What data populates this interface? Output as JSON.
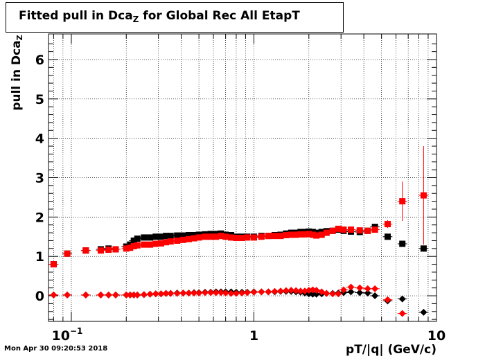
{
  "title_main": "Fitted pull in Dca",
  "title_sub": "Z",
  "title_rest": " for Global Rec All EtapT",
  "timestamp": "Mon Apr 30 09:20:53 2018",
  "chart_data": {
    "type": "scatter",
    "title": "Fitted pull in Dca_Z for Global Rec All EtapT",
    "xlabel": "pT/|q| (GeV/c)",
    "ylabel_main": "pull in Dca",
    "ylabel_sub": "Z",
    "xscale": "log",
    "xlim": [
      0.075,
      10
    ],
    "ylim": [
      -0.65,
      6.65
    ],
    "grid": true,
    "xtick_labels": [
      {
        "value": 0.1,
        "label": "10",
        "exp": "−1"
      },
      {
        "value": 1,
        "label": "1",
        "exp": ""
      },
      {
        "value": 10,
        "label": "10",
        "exp": ""
      }
    ],
    "yticks": [
      0,
      1,
      2,
      3,
      4,
      5,
      6
    ],
    "series": [
      {
        "marker": "square",
        "color": "#000000",
        "points": [
          {
            "x": 0.08,
            "y": 0.8
          },
          {
            "x": 0.095,
            "y": 1.07
          },
          {
            "x": 0.12,
            "y": 1.15
          },
          {
            "x": 0.145,
            "y": 1.18
          },
          {
            "x": 0.16,
            "y": 1.2
          },
          {
            "x": 0.175,
            "y": 1.18
          },
          {
            "x": 0.2,
            "y": 1.25
          },
          {
            "x": 0.21,
            "y": 1.3
          },
          {
            "x": 0.22,
            "y": 1.4
          },
          {
            "x": 0.23,
            "y": 1.45
          },
          {
            "x": 0.25,
            "y": 1.48
          },
          {
            "x": 0.27,
            "y": 1.48
          },
          {
            "x": 0.29,
            "y": 1.5
          },
          {
            "x": 0.31,
            "y": 1.5
          },
          {
            "x": 0.33,
            "y": 1.52
          },
          {
            "x": 0.35,
            "y": 1.52
          },
          {
            "x": 0.38,
            "y": 1.53
          },
          {
            "x": 0.41,
            "y": 1.53
          },
          {
            "x": 0.44,
            "y": 1.54
          },
          {
            "x": 0.47,
            "y": 1.54
          },
          {
            "x": 0.5,
            "y": 1.55
          },
          {
            "x": 0.54,
            "y": 1.56
          },
          {
            "x": 0.58,
            "y": 1.57
          },
          {
            "x": 0.62,
            "y": 1.57
          },
          {
            "x": 0.66,
            "y": 1.58
          },
          {
            "x": 0.7,
            "y": 1.55
          },
          {
            "x": 0.75,
            "y": 1.54
          },
          {
            "x": 0.8,
            "y": 1.5
          },
          {
            "x": 0.86,
            "y": 1.5
          },
          {
            "x": 0.92,
            "y": 1.5
          },
          {
            "x": 1.0,
            "y": 1.5
          },
          {
            "x": 1.1,
            "y": 1.52
          },
          {
            "x": 1.2,
            "y": 1.52
          },
          {
            "x": 1.3,
            "y": 1.54
          },
          {
            "x": 1.4,
            "y": 1.55
          },
          {
            "x": 1.5,
            "y": 1.58
          },
          {
            "x": 1.6,
            "y": 1.6
          },
          {
            "x": 1.7,
            "y": 1.6
          },
          {
            "x": 1.8,
            "y": 1.62
          },
          {
            "x": 1.9,
            "y": 1.62
          },
          {
            "x": 2.0,
            "y": 1.63
          },
          {
            "x": 2.1,
            "y": 1.62
          },
          {
            "x": 2.2,
            "y": 1.6
          },
          {
            "x": 2.35,
            "y": 1.62
          },
          {
            "x": 2.5,
            "y": 1.64
          },
          {
            "x": 2.7,
            "y": 1.65
          },
          {
            "x": 2.9,
            "y": 1.68
          },
          {
            "x": 3.1,
            "y": 1.65
          },
          {
            "x": 3.4,
            "y": 1.63
          },
          {
            "x": 3.8,
            "y": 1.62
          },
          {
            "x": 4.2,
            "y": 1.65
          },
          {
            "x": 4.6,
            "y": 1.75
          },
          {
            "x": 5.4,
            "y": 1.5
          },
          {
            "x": 6.5,
            "y": 1.32
          },
          {
            "x": 8.5,
            "y": 1.2
          }
        ]
      },
      {
        "marker": "square",
        "color": "#ff0000",
        "points": [
          {
            "x": 0.08,
            "y": 0.8
          },
          {
            "x": 0.095,
            "y": 1.07
          },
          {
            "x": 0.12,
            "y": 1.15
          },
          {
            "x": 0.145,
            "y": 1.15
          },
          {
            "x": 0.16,
            "y": 1.17
          },
          {
            "x": 0.175,
            "y": 1.18
          },
          {
            "x": 0.2,
            "y": 1.2
          },
          {
            "x": 0.21,
            "y": 1.22
          },
          {
            "x": 0.22,
            "y": 1.26
          },
          {
            "x": 0.23,
            "y": 1.28
          },
          {
            "x": 0.25,
            "y": 1.3
          },
          {
            "x": 0.27,
            "y": 1.3
          },
          {
            "x": 0.29,
            "y": 1.32
          },
          {
            "x": 0.31,
            "y": 1.33
          },
          {
            "x": 0.33,
            "y": 1.36
          },
          {
            "x": 0.35,
            "y": 1.38
          },
          {
            "x": 0.38,
            "y": 1.4
          },
          {
            "x": 0.41,
            "y": 1.42
          },
          {
            "x": 0.44,
            "y": 1.44
          },
          {
            "x": 0.47,
            "y": 1.46
          },
          {
            "x": 0.5,
            "y": 1.48
          },
          {
            "x": 0.54,
            "y": 1.5
          },
          {
            "x": 0.58,
            "y": 1.5
          },
          {
            "x": 0.62,
            "y": 1.5
          },
          {
            "x": 0.66,
            "y": 1.52
          },
          {
            "x": 0.7,
            "y": 1.5
          },
          {
            "x": 0.75,
            "y": 1.48
          },
          {
            "x": 0.8,
            "y": 1.47
          },
          {
            "x": 0.86,
            "y": 1.47
          },
          {
            "x": 0.92,
            "y": 1.48
          },
          {
            "x": 1.0,
            "y": 1.48
          },
          {
            "x": 1.1,
            "y": 1.5
          },
          {
            "x": 1.2,
            "y": 1.52
          },
          {
            "x": 1.3,
            "y": 1.52
          },
          {
            "x": 1.4,
            "y": 1.52
          },
          {
            "x": 1.5,
            "y": 1.54
          },
          {
            "x": 1.6,
            "y": 1.55
          },
          {
            "x": 1.7,
            "y": 1.55
          },
          {
            "x": 1.8,
            "y": 1.56
          },
          {
            "x": 1.9,
            "y": 1.56
          },
          {
            "x": 2.0,
            "y": 1.57
          },
          {
            "x": 2.1,
            "y": 1.55
          },
          {
            "x": 2.2,
            "y": 1.53
          },
          {
            "x": 2.35,
            "y": 1.55
          },
          {
            "x": 2.5,
            "y": 1.6
          },
          {
            "x": 2.7,
            "y": 1.65
          },
          {
            "x": 2.9,
            "y": 1.7
          },
          {
            "x": 3.1,
            "y": 1.68
          },
          {
            "x": 3.4,
            "y": 1.68
          },
          {
            "x": 3.8,
            "y": 1.66
          },
          {
            "x": 4.2,
            "y": 1.65
          },
          {
            "x": 4.6,
            "y": 1.68
          },
          {
            "x": 5.4,
            "y": 1.82,
            "err": 0.1
          },
          {
            "x": 6.5,
            "y": 2.4,
            "err": 0.5
          },
          {
            "x": 8.5,
            "y": 2.55,
            "err": 1.25
          }
        ]
      },
      {
        "marker": "diamond",
        "color": "#000000",
        "points": [
          {
            "x": 0.08,
            "y": 0.02
          },
          {
            "x": 0.095,
            "y": 0.02
          },
          {
            "x": 0.12,
            "y": 0.02
          },
          {
            "x": 0.145,
            "y": 0.02
          },
          {
            "x": 0.16,
            "y": 0.02
          },
          {
            "x": 0.175,
            "y": 0.02
          },
          {
            "x": 0.2,
            "y": 0.02
          },
          {
            "x": 0.21,
            "y": 0.02
          },
          {
            "x": 0.22,
            "y": 0.02
          },
          {
            "x": 0.23,
            "y": 0.02
          },
          {
            "x": 0.25,
            "y": 0.03
          },
          {
            "x": 0.27,
            "y": 0.04
          },
          {
            "x": 0.29,
            "y": 0.05
          },
          {
            "x": 0.31,
            "y": 0.05
          },
          {
            "x": 0.33,
            "y": 0.06
          },
          {
            "x": 0.35,
            "y": 0.06
          },
          {
            "x": 0.38,
            "y": 0.07
          },
          {
            "x": 0.41,
            "y": 0.07
          },
          {
            "x": 0.44,
            "y": 0.07
          },
          {
            "x": 0.47,
            "y": 0.08
          },
          {
            "x": 0.5,
            "y": 0.08
          },
          {
            "x": 0.54,
            "y": 0.09
          },
          {
            "x": 0.58,
            "y": 0.09
          },
          {
            "x": 0.62,
            "y": 0.1
          },
          {
            "x": 0.66,
            "y": 0.1
          },
          {
            "x": 0.7,
            "y": 0.1
          },
          {
            "x": 0.75,
            "y": 0.1
          },
          {
            "x": 0.8,
            "y": 0.09
          },
          {
            "x": 0.86,
            "y": 0.09
          },
          {
            "x": 0.92,
            "y": 0.09
          },
          {
            "x": 1.0,
            "y": 0.1
          },
          {
            "x": 1.1,
            "y": 0.1
          },
          {
            "x": 1.2,
            "y": 0.1
          },
          {
            "x": 1.3,
            "y": 0.1
          },
          {
            "x": 1.4,
            "y": 0.11
          },
          {
            "x": 1.5,
            "y": 0.11
          },
          {
            "x": 1.6,
            "y": 0.11
          },
          {
            "x": 1.7,
            "y": 0.1
          },
          {
            "x": 1.8,
            "y": 0.09
          },
          {
            "x": 1.9,
            "y": 0.07
          },
          {
            "x": 2.0,
            "y": 0.05
          },
          {
            "x": 2.1,
            "y": 0.04
          },
          {
            "x": 2.2,
            "y": 0.04
          },
          {
            "x": 2.35,
            "y": 0.05
          },
          {
            "x": 2.5,
            "y": 0.06
          },
          {
            "x": 2.7,
            "y": 0.06
          },
          {
            "x": 2.9,
            "y": 0.07
          },
          {
            "x": 3.1,
            "y": 0.08
          },
          {
            "x": 3.4,
            "y": 0.1
          },
          {
            "x": 3.8,
            "y": 0.08
          },
          {
            "x": 4.2,
            "y": 0.07
          },
          {
            "x": 4.6,
            "y": 0.0
          },
          {
            "x": 5.4,
            "y": -0.13
          },
          {
            "x": 6.5,
            "y": -0.08
          },
          {
            "x": 8.5,
            "y": -0.42
          }
        ]
      },
      {
        "marker": "diamond",
        "color": "#ff0000",
        "points": [
          {
            "x": 0.08,
            "y": 0.02
          },
          {
            "x": 0.095,
            "y": 0.02
          },
          {
            "x": 0.12,
            "y": 0.02
          },
          {
            "x": 0.145,
            "y": 0.02
          },
          {
            "x": 0.16,
            "y": 0.02
          },
          {
            "x": 0.175,
            "y": 0.02
          },
          {
            "x": 0.2,
            "y": 0.02
          },
          {
            "x": 0.21,
            "y": 0.02
          },
          {
            "x": 0.22,
            "y": 0.02
          },
          {
            "x": 0.23,
            "y": 0.02
          },
          {
            "x": 0.25,
            "y": 0.03
          },
          {
            "x": 0.27,
            "y": 0.04
          },
          {
            "x": 0.29,
            "y": 0.05
          },
          {
            "x": 0.31,
            "y": 0.05
          },
          {
            "x": 0.33,
            "y": 0.06
          },
          {
            "x": 0.35,
            "y": 0.06
          },
          {
            "x": 0.38,
            "y": 0.06
          },
          {
            "x": 0.41,
            "y": 0.07
          },
          {
            "x": 0.44,
            "y": 0.07
          },
          {
            "x": 0.47,
            "y": 0.07
          },
          {
            "x": 0.5,
            "y": 0.07
          },
          {
            "x": 0.54,
            "y": 0.08
          },
          {
            "x": 0.58,
            "y": 0.08
          },
          {
            "x": 0.62,
            "y": 0.08
          },
          {
            "x": 0.66,
            "y": 0.08
          },
          {
            "x": 0.7,
            "y": 0.07
          },
          {
            "x": 0.75,
            "y": 0.06
          },
          {
            "x": 0.8,
            "y": 0.06
          },
          {
            "x": 0.86,
            "y": 0.07
          },
          {
            "x": 0.92,
            "y": 0.08
          },
          {
            "x": 1.0,
            "y": 0.09
          },
          {
            "x": 1.1,
            "y": 0.1
          },
          {
            "x": 1.2,
            "y": 0.1
          },
          {
            "x": 1.3,
            "y": 0.11
          },
          {
            "x": 1.4,
            "y": 0.12
          },
          {
            "x": 1.5,
            "y": 0.13
          },
          {
            "x": 1.6,
            "y": 0.14
          },
          {
            "x": 1.7,
            "y": 0.13
          },
          {
            "x": 1.8,
            "y": 0.12
          },
          {
            "x": 1.9,
            "y": 0.12
          },
          {
            "x": 2.0,
            "y": 0.14
          },
          {
            "x": 2.1,
            "y": 0.15
          },
          {
            "x": 2.2,
            "y": 0.14
          },
          {
            "x": 2.35,
            "y": 0.1
          },
          {
            "x": 2.5,
            "y": 0.06
          },
          {
            "x": 2.7,
            "y": 0.05
          },
          {
            "x": 2.9,
            "y": 0.05
          },
          {
            "x": 3.1,
            "y": 0.15
          },
          {
            "x": 3.4,
            "y": 0.22
          },
          {
            "x": 3.8,
            "y": 0.2
          },
          {
            "x": 4.2,
            "y": 0.18
          },
          {
            "x": 4.6,
            "y": 0.18
          },
          {
            "x": 5.4,
            "y": -0.1
          },
          {
            "x": 6.5,
            "y": -0.45
          },
          {
            "x": 8.5,
            "y": null
          }
        ]
      }
    ]
  }
}
